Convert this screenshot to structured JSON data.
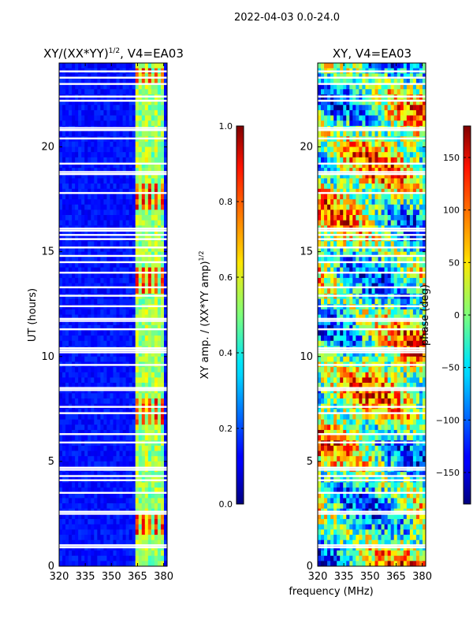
{
  "suptitle": "2022-04-03 0.0-24.0",
  "chart_data": [
    {
      "type": "heatmap",
      "title_main": "XY/(XX*YY)",
      "title_sup": "1/2",
      "title_tail": ", V4=EA03",
      "xlabel": "",
      "ylabel": "UT (hours)",
      "xlim": [
        320,
        382
      ],
      "ylim": [
        0,
        24
      ],
      "xticks": [
        "320",
        "335",
        "350",
        "365",
        "380"
      ],
      "xtick_values": [
        320,
        335,
        350,
        365,
        380
      ],
      "yticks": [
        "0",
        "5",
        "10",
        "15",
        "20"
      ],
      "ytick_values": [
        0,
        5,
        10,
        15,
        20
      ],
      "colorbar": {
        "label_main": "XY amp. / (XX*YY amp)",
        "label_sup": "1/2",
        "range": [
          0.0,
          1.0
        ],
        "ticks": [
          "0.0",
          "0.2",
          "0.4",
          "0.6",
          "0.8",
          "1.0"
        ],
        "tick_values": [
          0.0,
          0.2,
          0.4,
          0.6,
          0.8,
          1.0
        ]
      },
      "active_band_mhz": [
        363,
        381
      ],
      "bright_ut_ranges": [
        [
          13.0,
          14.3
        ],
        [
          17.0,
          18.3
        ],
        [
          6.8,
          8.0
        ],
        [
          23.0,
          23.8
        ],
        [
          1.6,
          2.4
        ]
      ]
    },
    {
      "type": "heatmap",
      "title": "XY, V4=EA03",
      "xlabel": "frequency (MHz)",
      "ylabel": "",
      "xlim": [
        320,
        382
      ],
      "ylim": [
        0,
        24
      ],
      "xticks": [
        "320",
        "335",
        "350",
        "365",
        "380"
      ],
      "xtick_values": [
        320,
        335,
        350,
        365,
        380
      ],
      "yticks": [
        "0",
        "5",
        "10",
        "15",
        "20"
      ],
      "ytick_values": [
        0,
        5,
        10,
        15,
        20
      ],
      "colorbar": {
        "label": "phase (deg)",
        "range": [
          -180,
          180
        ],
        "ticks": [
          "−150",
          "−100",
          "−50",
          "0",
          "50",
          "100",
          "150"
        ],
        "tick_values": [
          -150,
          -100,
          -50,
          0,
          50,
          100,
          150
        ]
      }
    }
  ],
  "flagged_ut_hours": [
    0.9,
    1.0,
    2.5,
    2.6,
    3.5,
    4.1,
    4.3,
    4.6,
    4.7,
    5.9,
    6.3,
    7.3,
    7.6,
    8.4,
    8.5,
    9.6,
    10.2,
    10.3,
    10.4,
    11.3,
    11.7,
    11.8,
    12.4,
    12.9,
    13.3,
    14.0,
    14.5,
    14.8,
    15.2,
    15.6,
    15.8,
    16.0,
    16.1,
    17.8,
    18.7,
    18.8,
    19.2,
    20.4,
    20.8,
    20.9,
    22.2,
    22.4,
    23.0,
    23.3,
    23.6
  ]
}
